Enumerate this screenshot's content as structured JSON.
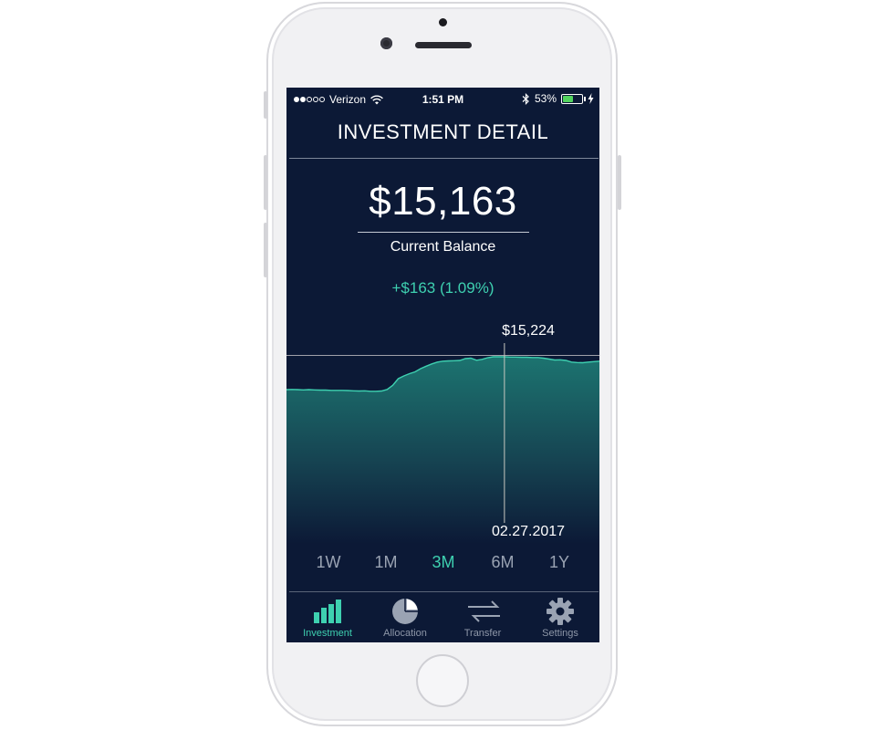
{
  "status_bar": {
    "carrier": "Verizon",
    "time": "1:51 PM",
    "battery_percent": "53%",
    "battery_level": 0.53,
    "signal_bars_filled": 2,
    "signal_bars_total": 5
  },
  "header": {
    "title": "INVESTMENT DETAIL"
  },
  "balance": {
    "amount": "$15,163",
    "label": "Current Balance",
    "change": "+$163 (1.09%)"
  },
  "chart": {
    "tooltip_value": "$15,224",
    "tooltip_date": "02.27.2017"
  },
  "chart_data": {
    "type": "area",
    "y": [
      15080,
      15081,
      15080,
      15079,
      15080,
      15079,
      15078,
      15078,
      15077,
      15077,
      15077,
      15076,
      15075,
      15074,
      15075,
      15073,
      15073,
      15074,
      15081,
      15099,
      15128,
      15140,
      15150,
      15158,
      15172,
      15183,
      15193,
      15201,
      15205,
      15206,
      15207,
      15208,
      15216,
      15218,
      15209,
      15213,
      15220,
      15224,
      15224,
      15224,
      15223,
      15223,
      15222,
      15222,
      15221,
      15221,
      15218,
      15214,
      15210,
      15211,
      15208,
      15201,
      15199,
      15198,
      15201,
      15203,
      15205
    ]
  },
  "ranges": [
    {
      "label": "1W",
      "active": false
    },
    {
      "label": "1M",
      "active": false
    },
    {
      "label": "3M",
      "active": true
    },
    {
      "label": "6M",
      "active": false
    },
    {
      "label": "1Y",
      "active": false
    }
  ],
  "tabs": [
    {
      "label": "Investment",
      "icon": "bar-chart-icon",
      "active": true
    },
    {
      "label": "Allocation",
      "icon": "pie-chart-icon",
      "active": false
    },
    {
      "label": "Transfer",
      "icon": "transfer-arrows-icon",
      "active": false
    },
    {
      "label": "Settings",
      "icon": "gear-icon",
      "active": false
    }
  ],
  "colors": {
    "background": "#0c1936",
    "accent": "#3ed0b0",
    "inactive": "#9aa3b3"
  }
}
